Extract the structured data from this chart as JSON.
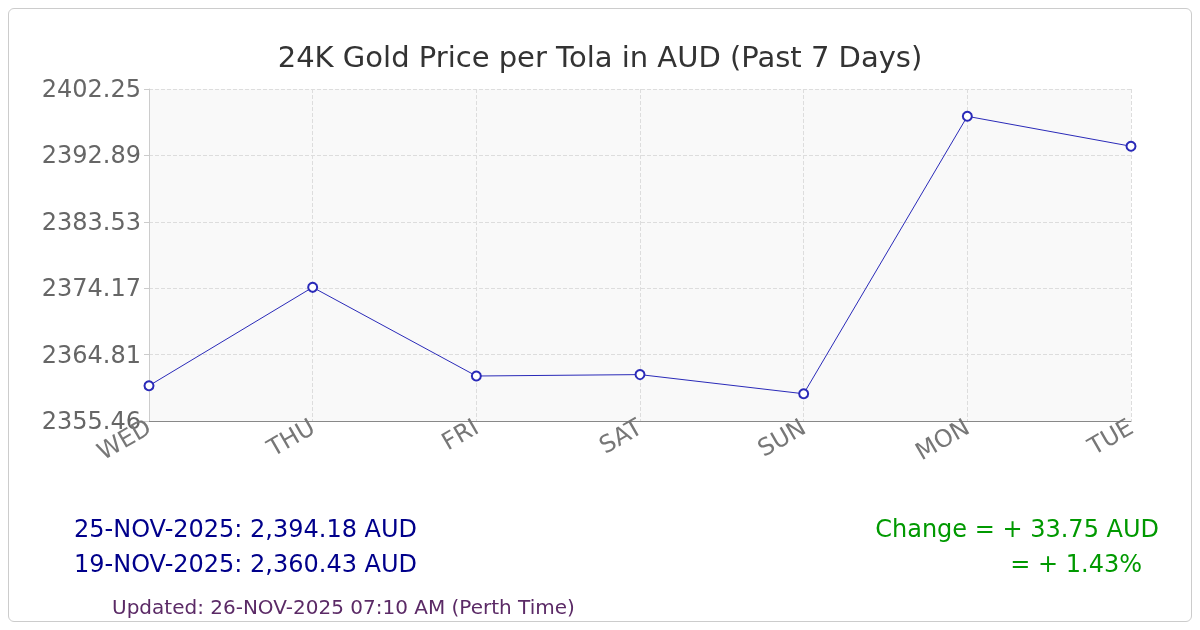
{
  "chart_data": {
    "type": "line",
    "title": "24K Gold Price per Tola in AUD (Past 7 Days)",
    "categories": [
      "WED",
      "THU",
      "FRI",
      "SAT",
      "SUN",
      "MON",
      "TUE"
    ],
    "series": [
      {
        "color": "#2a2ab8",
        "values": [
          2360.43,
          2374.3,
          2361.8,
          2362.0,
          2359.3,
          2398.4,
          2394.18
        ]
      }
    ],
    "ylim": [
      2355.46,
      2402.25
    ],
    "yticks": [
      2355.46,
      2364.81,
      2374.17,
      2383.53,
      2392.89,
      2402.25
    ],
    "grid": true,
    "marker": "circle",
    "line_style": "solid",
    "annotations": [
      "25-NOV-2025: 2,394.18 AUD",
      "19-NOV-2025: 2,360.43 AUD",
      "Change = + 33.75 AUD",
      "= + 1.43%",
      "Updated: 26-NOV-2025 07:10 AM (Perth Time)"
    ]
  }
}
